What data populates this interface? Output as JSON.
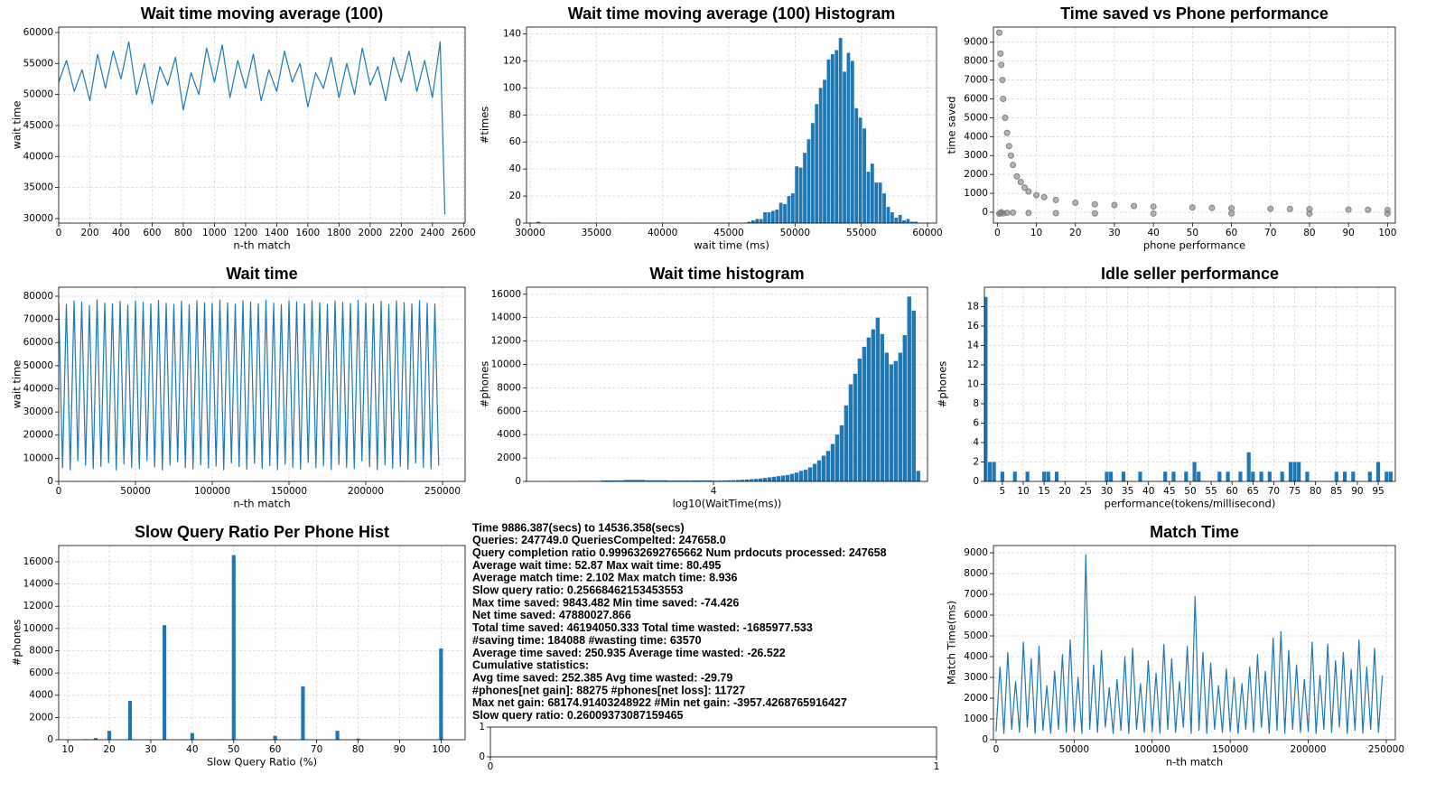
{
  "chart_data": [
    {
      "type": "line",
      "title": "Wait time moving average (100)",
      "xlabel": "n-th match",
      "ylabel": "wait time",
      "color": "#1f77b4",
      "grid": true,
      "xlim": [
        0,
        2610
      ],
      "ylim": [
        29270,
        60870
      ],
      "xticks": [
        0,
        200,
        400,
        600,
        800,
        1000,
        1200,
        1400,
        1600,
        1800,
        2000,
        2200,
        2400,
        2600
      ],
      "yticks": [
        30000,
        35000,
        40000,
        45000,
        50000,
        55000,
        60000
      ],
      "x": [
        0,
        50,
        100,
        150,
        200,
        250,
        300,
        350,
        400,
        450,
        500,
        550,
        600,
        650,
        700,
        750,
        800,
        850,
        900,
        950,
        1000,
        1050,
        1100,
        1150,
        1200,
        1250,
        1300,
        1350,
        1400,
        1450,
        1500,
        1550,
        1600,
        1650,
        1700,
        1750,
        1800,
        1850,
        1900,
        1950,
        2000,
        2050,
        2100,
        2150,
        2200,
        2250,
        2300,
        2350,
        2400,
        2450,
        2480
      ],
      "values": [
        52000,
        55500,
        50500,
        54000,
        49000,
        56500,
        51000,
        57000,
        52500,
        58500,
        50000,
        55000,
        48500,
        54500,
        51500,
        56000,
        47500,
        53500,
        50000,
        57500,
        52000,
        58000,
        49500,
        55500,
        51000,
        56500,
        49000,
        54000,
        50500,
        57000,
        52000,
        55000,
        48000,
        53500,
        51000,
        56000,
        49500,
        55000,
        50000,
        57500,
        51500,
        54500,
        49000,
        56000,
        52000,
        57000,
        50500,
        55500,
        49500,
        58500,
        30700
      ]
    },
    {
      "type": "histogram",
      "title": "Wait time moving average (100) Histogram",
      "xlabel": "wait time (ms)",
      "ylabel": "#times",
      "color": "#1f77b4",
      "grid": true,
      "xlim": [
        29730,
        60680
      ],
      "ylim": [
        0,
        145
      ],
      "xticks": [
        30000,
        35000,
        40000,
        45000,
        50000,
        55000,
        60000
      ],
      "yticks": [
        0,
        20,
        40,
        60,
        80,
        100,
        120,
        140
      ],
      "bins": [
        30500,
        30800,
        31100,
        31400,
        31700,
        32000,
        32300,
        32600,
        32900,
        33200,
        33500,
        33800,
        34100,
        34400,
        34700,
        35000,
        35300,
        35600,
        35900,
        36200,
        36500,
        36800,
        37100,
        37400,
        37700,
        38000,
        38300,
        38600,
        38900,
        39200,
        39500,
        39800,
        40100,
        40400,
        40700,
        41000,
        41300,
        41600,
        41900,
        42200,
        42500,
        42800,
        43100,
        43400,
        43700,
        44000,
        44300,
        44600,
        44900,
        45200,
        45500,
        45800,
        46100,
        46400,
        46700,
        47000,
        47300,
        47600,
        47900,
        48200,
        48500,
        48800,
        49100,
        49400,
        49700,
        50000,
        50300,
        50600,
        50900,
        51200,
        51500,
        51800,
        52100,
        52400,
        52700,
        53000,
        53300,
        53600,
        53900,
        54200,
        54500,
        54800,
        55100,
        55400,
        55700,
        56000,
        56300,
        56600,
        56900,
        57200,
        57500,
        57800,
        58100,
        58400,
        58700,
        59000,
        59300
      ],
      "values": [
        1,
        0,
        0,
        0,
        0,
        0,
        0,
        0,
        0,
        0,
        0,
        0,
        0,
        0,
        0,
        0,
        0,
        0,
        0,
        0,
        0,
        0,
        0,
        0,
        0,
        0,
        0,
        0,
        0,
        0,
        0,
        0,
        0,
        0,
        0,
        0,
        0,
        0,
        0,
        0,
        0,
        0,
        0,
        0,
        0,
        0,
        0,
        0,
        0,
        0,
        0,
        0,
        0,
        1,
        2,
        3,
        3,
        8,
        8,
        9,
        10,
        15,
        14,
        20,
        22,
        42,
        41,
        52,
        62,
        74,
        88,
        100,
        106,
        121,
        125,
        128,
        137,
        112,
        126,
        120,
        85,
        78,
        70,
        38,
        44,
        30,
        30,
        22,
        12,
        8,
        4,
        6,
        2,
        3,
        1,
        1
      ]
    },
    {
      "type": "scatter",
      "title": "Time saved vs Phone performance",
      "xlabel": "phone performance",
      "ylabel": "time saved",
      "color": "#808080",
      "grid": true,
      "xlim": [
        -1,
        102
      ],
      "ylim": [
        -575,
        9800
      ],
      "xticks": [
        0,
        10,
        20,
        30,
        40,
        50,
        60,
        70,
        80,
        90,
        100
      ],
      "yticks": [
        0,
        1000,
        2000,
        3000,
        4000,
        5000,
        6000,
        7000,
        8000,
        9000
      ],
      "x": [
        0.5,
        0.5,
        0.8,
        0.8,
        1,
        1,
        1.3,
        1.5,
        1.5,
        2,
        2.5,
        2.5,
        3,
        3.5,
        4,
        4,
        5,
        6,
        7,
        8,
        8,
        10,
        12,
        15,
        15,
        20,
        25,
        25,
        30,
        35,
        40,
        40,
        50,
        55,
        60,
        60,
        70,
        75,
        80,
        80,
        90,
        95,
        100,
        100
      ],
      "values": [
        9500,
        -80,
        8400,
        -50,
        7800,
        0,
        7000,
        6000,
        -60,
        5000,
        4200,
        -30,
        3500,
        3000,
        2500,
        -20,
        1900,
        1600,
        1300,
        1100,
        -40,
        900,
        800,
        650,
        -50,
        500,
        420,
        -60,
        380,
        330,
        300,
        -70,
        250,
        230,
        210,
        -60,
        180,
        170,
        160,
        -70,
        140,
        130,
        120,
        -70
      ]
    },
    {
      "type": "line",
      "title": "Wait time",
      "xlabel": "n-th match",
      "ylabel": "wait time",
      "color": "#1f77b4",
      "grid": true,
      "xlim": [
        0,
        264700
      ],
      "ylim": [
        0,
        83900
      ],
      "xticks": [
        0,
        50000,
        100000,
        150000,
        200000,
        250000
      ],
      "yticks": [
        0,
        10000,
        20000,
        30000,
        40000,
        50000,
        60000,
        70000,
        80000
      ],
      "x": [
        0,
        2500,
        5000,
        7500,
        10000,
        12500,
        15000,
        17500,
        20000,
        22500,
        25000,
        27500,
        30000,
        32500,
        35000,
        37500,
        40000,
        42500,
        45000,
        47500,
        50000,
        52500,
        55000,
        57500,
        60000,
        62500,
        65000,
        67500,
        70000,
        72500,
        75000,
        77500,
        80000,
        82500,
        85000,
        87500,
        90000,
        92500,
        95000,
        97500,
        100000,
        102500,
        105000,
        107500,
        110000,
        112500,
        115000,
        117500,
        120000,
        122500,
        125000,
        127500,
        130000,
        132500,
        135000,
        137500,
        140000,
        142500,
        145000,
        147500,
        150000,
        152500,
        155000,
        157500,
        160000,
        162500,
        165000,
        167500,
        170000,
        172500,
        175000,
        177500,
        180000,
        182500,
        185000,
        187500,
        190000,
        192500,
        195000,
        197500,
        200000,
        202500,
        205000,
        207500,
        210000,
        212500,
        215000,
        217500,
        220000,
        222500,
        225000,
        227500,
        230000,
        232500,
        235000,
        237500,
        240000,
        242500,
        245000,
        247500
      ],
      "values": [
        77000,
        6000,
        76500,
        5000,
        78000,
        9000,
        77500,
        7000,
        76000,
        5500,
        78500,
        6500,
        77000,
        8000,
        76800,
        5000,
        77800,
        7500,
        76200,
        6000,
        78000,
        5500,
        77300,
        9000,
        76700,
        6200,
        78200,
        5000,
        77000,
        7000,
        76500,
        8500,
        77900,
        6000,
        76300,
        5400,
        78100,
        7200,
        77200,
        5800,
        76900,
        6600,
        78400,
        5000,
        77100,
        8000,
        76600,
        6400,
        78000,
        5200,
        77400,
        7800,
        76800,
        5600,
        78300,
        6800,
        77000,
        5000,
        76400,
        7400,
        78000,
        6000,
        77600,
        5300,
        76700,
        8200,
        78100,
        5900,
        77200,
        6700,
        76500,
        5100,
        78000,
        7300,
        77300,
        6100,
        76900,
        5500,
        78200,
        8800,
        77000,
        6300,
        76600,
        5000,
        77800,
        7100,
        76400,
        5700,
        78000,
        6500,
        77200,
        5200,
        76800,
        7900,
        78100,
        6000,
        77000,
        5400,
        76700,
        6800
      ]
    },
    {
      "type": "histogram",
      "title": "Wait time histogram",
      "xlabel": "log10(WaitTime(ms))",
      "ylabel": "#phones",
      "color": "#1f77b4",
      "grid": true,
      "xlim": [
        3.17,
        4.95
      ],
      "ylim": [
        0,
        16600
      ],
      "xticks": [
        4
      ],
      "yticks": [
        0,
        2000,
        4000,
        6000,
        8000,
        10000,
        12000,
        14000,
        16000
      ],
      "bins": [
        3.3,
        3.4,
        3.5,
        3.6,
        3.7,
        3.8,
        3.9,
        4.0,
        4.02,
        4.04,
        4.06,
        4.08,
        4.1,
        4.12,
        4.14,
        4.16,
        4.18,
        4.2,
        4.22,
        4.24,
        4.26,
        4.28,
        4.3,
        4.32,
        4.34,
        4.36,
        4.38,
        4.4,
        4.42,
        4.44,
        4.46,
        4.48,
        4.5,
        4.52,
        4.54,
        4.56,
        4.58,
        4.6,
        4.62,
        4.64,
        4.66,
        4.68,
        4.7,
        4.72,
        4.74,
        4.76,
        4.78,
        4.8,
        4.82,
        4.84,
        4.86,
        4.88,
        4.9,
        4.92
      ],
      "values": [
        20,
        40,
        80,
        120,
        90,
        70,
        80,
        60,
        70,
        80,
        90,
        100,
        120,
        140,
        160,
        190,
        220,
        250,
        300,
        350,
        400,
        450,
        500,
        550,
        650,
        750,
        900,
        1000,
        1200,
        1500,
        1800,
        2200,
        2600,
        3200,
        4000,
        4800,
        6500,
        8300,
        9200,
        10500,
        11500,
        12300,
        13000,
        14000,
        12600,
        11000,
        10000,
        10300,
        11000,
        12500,
        15800,
        14600,
        900
      ]
    },
    {
      "type": "bar",
      "title": "Idle seller performance",
      "xlabel": "performance(tokens/millisecond)",
      "ylabel": "#phones",
      "color": "#1f77b4",
      "grid": true,
      "xlim": [
        0.7,
        99.1
      ],
      "ylim": [
        0,
        20
      ],
      "xticks": [
        5,
        10,
        15,
        20,
        25,
        30,
        35,
        40,
        45,
        50,
        55,
        60,
        65,
        70,
        75,
        80,
        85,
        90,
        95
      ],
      "yticks": [
        0,
        2,
        4,
        6,
        8,
        10,
        12,
        14,
        16,
        18
      ],
      "x": [
        1,
        2,
        3,
        5,
        8,
        11,
        15,
        16,
        18,
        30,
        31,
        34,
        38,
        44,
        46,
        49,
        51,
        52,
        57,
        59,
        62,
        64,
        65,
        67,
        69,
        72,
        74,
        75,
        76,
        78,
        85,
        87,
        89,
        93,
        95,
        97,
        98
      ],
      "values": [
        19,
        2,
        2,
        1,
        1,
        1,
        1,
        1,
        1,
        1,
        1,
        1,
        1,
        1,
        1,
        1,
        2,
        1,
        1,
        1,
        1,
        3,
        1,
        1,
        1,
        1,
        2,
        2,
        2,
        1,
        1,
        1,
        1,
        1,
        2,
        1,
        1
      ]
    },
    {
      "type": "bar",
      "title": "Slow Query Ratio Per Phone Hist",
      "xlabel": "Slow Query Ratio (%)",
      "ylabel": "#phones",
      "color": "#1f77b4",
      "grid": true,
      "xlim": [
        7.8,
        105.8
      ],
      "ylim": [
        0,
        17460
      ],
      "xticks": [
        10,
        20,
        30,
        40,
        50,
        60,
        70,
        80,
        90,
        100
      ],
      "yticks": [
        0,
        2000,
        4000,
        6000,
        8000,
        10000,
        12000,
        14000,
        16000
      ],
      "x": [
        14.3,
        16.7,
        20,
        25,
        33.3,
        40,
        50,
        60,
        66.7,
        75,
        80,
        100
      ],
      "values": [
        50,
        150,
        800,
        3500,
        10300,
        600,
        16600,
        350,
        4800,
        800,
        100,
        8200
      ]
    },
    {
      "type": "line",
      "title": "Match Time",
      "xlabel": "n-th match",
      "ylabel": "Match Time(ms)",
      "color": "#1f77b4",
      "grid": true,
      "xlim": [
        -1700,
        255800
      ],
      "ylim": [
        0,
        9350
      ],
      "xticks": [
        0,
        50000,
        100000,
        150000,
        200000,
        250000
      ],
      "yticks": [
        0,
        1000,
        2000,
        3000,
        4000,
        5000,
        6000,
        7000,
        8000,
        9000
      ],
      "x": [
        0,
        2500,
        5000,
        7500,
        10000,
        12500,
        15000,
        17500,
        20000,
        22500,
        25000,
        27500,
        30000,
        32500,
        35000,
        37500,
        40000,
        42500,
        45000,
        47500,
        50000,
        52500,
        55000,
        57500,
        60000,
        62500,
        65000,
        67500,
        70000,
        72500,
        75000,
        77500,
        80000,
        82500,
        85000,
        87500,
        90000,
        92500,
        95000,
        97500,
        100000,
        102500,
        105000,
        107500,
        110000,
        112500,
        115000,
        117500,
        120000,
        122500,
        125000,
        127500,
        130000,
        132500,
        135000,
        137500,
        140000,
        142500,
        145000,
        147500,
        150000,
        152500,
        155000,
        157500,
        160000,
        162500,
        165000,
        167500,
        170000,
        172500,
        175000,
        177500,
        180000,
        182500,
        185000,
        187500,
        190000,
        192500,
        195000,
        197500,
        200000,
        202500,
        205000,
        207500,
        210000,
        212500,
        215000,
        217500,
        220000,
        222500,
        225000,
        227500,
        230000,
        232500,
        235000,
        237500,
        240000,
        242500,
        245000,
        247500
      ],
      "values": [
        400,
        3500,
        300,
        4200,
        500,
        2800,
        350,
        4700,
        600,
        3900,
        300,
        4500,
        450,
        2600,
        300,
        3300,
        500,
        4100,
        350,
        4800,
        400,
        3000,
        300,
        8900,
        500,
        3600,
        350,
        4300,
        600,
        2500,
        300,
        2900,
        450,
        4000,
        300,
        4400,
        500,
        2700,
        350,
        3800,
        400,
        3200,
        300,
        4600,
        500,
        3900,
        350,
        2800,
        600,
        4500,
        300,
        6900,
        450,
        4200,
        300,
        3700,
        500,
        2600,
        350,
        3400,
        400,
        3000,
        300,
        2700,
        500,
        3500,
        350,
        4100,
        600,
        3300,
        300,
        4900,
        450,
        5200,
        300,
        4300,
        500,
        3600,
        350,
        2900,
        400,
        4700,
        300,
        3100,
        500,
        4600,
        350,
        3800,
        600,
        4200,
        300,
        3400,
        450,
        4800,
        300,
        3500,
        500,
        4400,
        350,
        3100
      ]
    },
    {
      "type": "empty",
      "grid": false,
      "xlim": [
        0,
        1
      ],
      "ylim": [
        0,
        1
      ],
      "xticks": [
        0,
        1
      ],
      "yticks": [
        0,
        1
      ]
    }
  ],
  "stats_text": [
    "Time 9886.387(secs) to 14536.358(secs)",
    "Queries: 247749.0 QueriesCompelted: 247658.0",
    "Query completion ratio 0.999632692765662 Num prdocuts processed: 247658",
    "Average wait time: 52.87 Max wait time: 80.495",
    "Average match time: 2.102 Max match time: 8.936",
    "Slow query ratio: 0.25668462153453553",
    "Max time saved: 9843.482 Min time saved: -74.426",
    "Net time saved: 47880027.866",
    "Total time saved: 46194050.333 Total time wasted: -1685977.533",
    "#saving time: 184088 #wasting time: 63570",
    "Average time saved: 250.935 Average time wasted: -26.522",
    "Cumulative statistics:",
    "Avg time saved: 252.385 Avg time wasted: -29.79",
    "#phones[net gain]: 88275 #phones[net loss]: 11727",
    "Max net gain: 68174.91403248922 #Min net gain: -3957.4268765916427",
    "Slow query ratio: 0.26009373087159465"
  ]
}
